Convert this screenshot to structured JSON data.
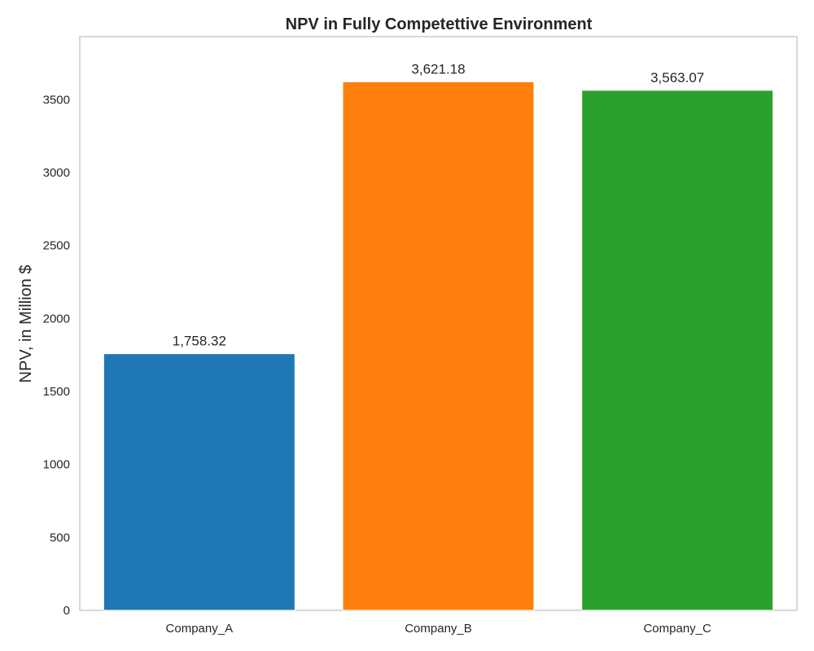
{
  "chart_data": {
    "type": "bar",
    "title": "NPV in Fully Competettive Environment",
    "xlabel": "",
    "ylabel": "NPV, in Million $",
    "categories": [
      "Company_A",
      "Company_B",
      "Company_C"
    ],
    "values": [
      1758.32,
      3621.18,
      3563.07
    ],
    "value_labels": [
      "1,758.32",
      "3,621.18",
      "3,563.07"
    ],
    "colors": [
      "#1f77b4",
      "#ff7f0e",
      "#2ca02c"
    ],
    "ylim": [
      0,
      3931
    ],
    "yticks": [
      0,
      500,
      1000,
      1500,
      2000,
      2500,
      3000,
      3500
    ],
    "grid": false,
    "legend": false
  }
}
